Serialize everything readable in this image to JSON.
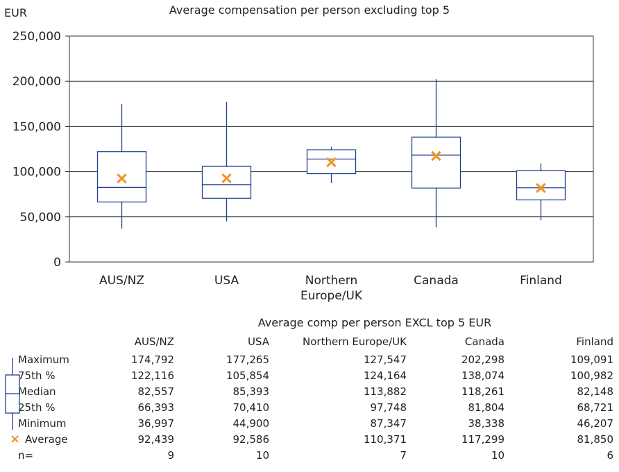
{
  "chart_data": {
    "type": "boxplot",
    "title": "Average compensation per person excluding top 5",
    "ylabel": "EUR",
    "ylim": [
      0,
      250000
    ],
    "yticks": [
      "0",
      "50,000",
      "100,000",
      "150,000",
      "200,000",
      "250,000"
    ],
    "yticks_values": [
      0,
      50000,
      100000,
      150000,
      200000,
      250000
    ],
    "grid": true,
    "categories": [
      {
        "label_lines": [
          "AUS/NZ"
        ]
      },
      {
        "label_lines": [
          "USA"
        ]
      },
      {
        "label_lines": [
          "Northern",
          "Europe/UK"
        ]
      },
      {
        "label_lines": [
          "Canada"
        ]
      },
      {
        "label_lines": [
          "Finland"
        ]
      }
    ],
    "series": [
      {
        "name": "AUS/NZ",
        "max": 174792,
        "q3": 122116,
        "median": 82557,
        "q1": 66393,
        "min": 36997,
        "mean": 92439,
        "n": 9
      },
      {
        "name": "USA",
        "max": 177265,
        "q3": 105854,
        "median": 85393,
        "q1": 70410,
        "min": 44900,
        "mean": 92586,
        "n": 10
      },
      {
        "name": "Northern Europe/UK",
        "max": 127547,
        "q3": 124164,
        "median": 113882,
        "q1": 97748,
        "min": 87347,
        "mean": 110371,
        "n": 7
      },
      {
        "name": "Canada",
        "max": 202298,
        "q3": 138074,
        "median": 118261,
        "q1": 81804,
        "min": 38338,
        "mean": 117299,
        "n": 10
      },
      {
        "name": "Finland",
        "max": 109091,
        "q3": 100982,
        "median": 82148,
        "q1": 68721,
        "min": 46207,
        "mean": 81850,
        "n": 6
      }
    ],
    "colors": {
      "box": "#1f3f8f",
      "mean": "#f0962a",
      "grid": "#333333"
    }
  },
  "table": {
    "title": "Average comp per person EXCL top 5 EUR",
    "columns": [
      "AUS/NZ",
      "USA",
      "Northern Europe/UK",
      "Canada",
      "Finland"
    ],
    "rows": [
      {
        "label": "Maximum",
        "values": [
          "174,792",
          "177,265",
          "127,547",
          "202,298",
          "109,091"
        ]
      },
      {
        "label": "75th %",
        "values": [
          "122,116",
          "105,854",
          "124,164",
          "138,074",
          "100,982"
        ]
      },
      {
        "label": "Median",
        "values": [
          "82,557",
          "85,393",
          "113,882",
          "118,261",
          "82,148"
        ]
      },
      {
        "label": "25th %",
        "values": [
          "66,393",
          "70,410",
          "97,748",
          "81,804",
          "68,721"
        ]
      },
      {
        "label": "Minimum",
        "values": [
          "36,997",
          "44,900",
          "87,347",
          "38,338",
          "46,207"
        ]
      },
      {
        "label": "Average",
        "values": [
          "92,439",
          "92,586",
          "110,371",
          "117,299",
          "81,850"
        ]
      },
      {
        "label": "n=",
        "values": [
          "9",
          "10",
          "7",
          "10",
          "6"
        ]
      }
    ],
    "average_marker": "×"
  }
}
